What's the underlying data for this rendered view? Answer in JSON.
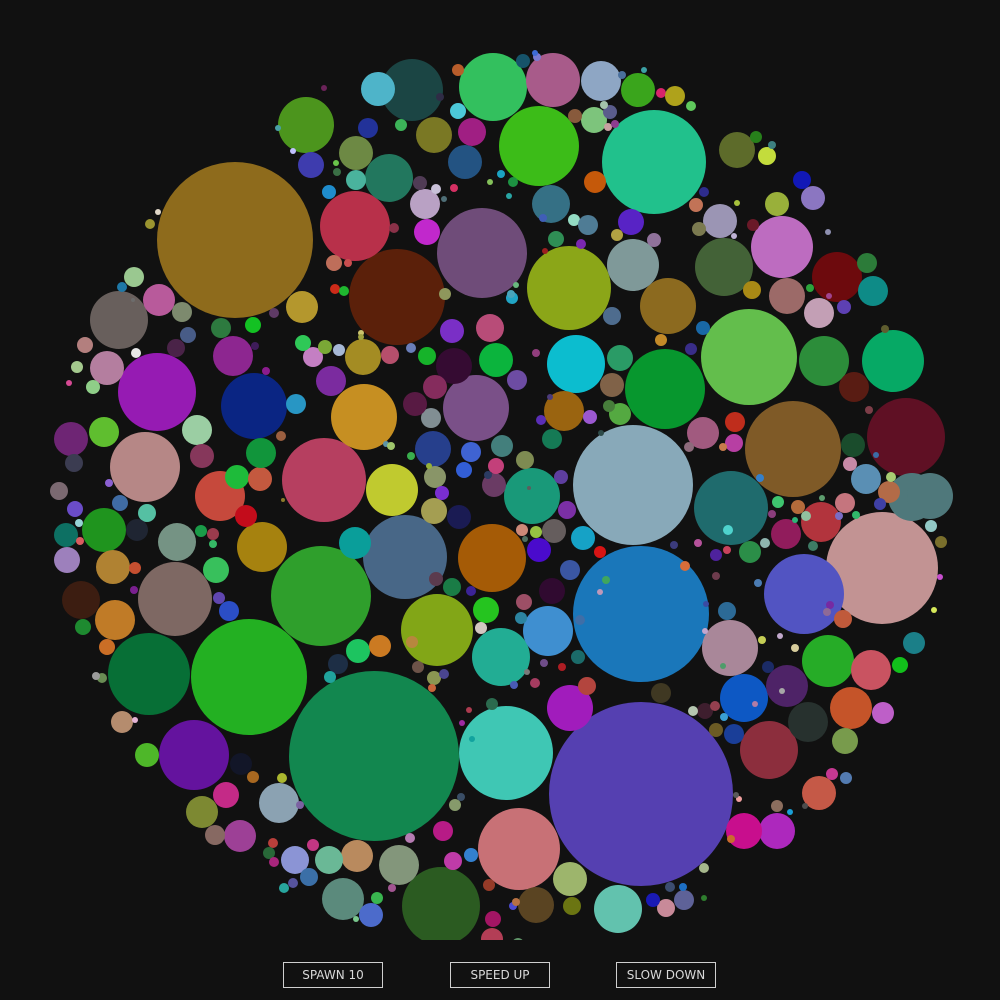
{
  "controls": {
    "spawn_label": "SPAWN 10",
    "speed_up_label": "SPEED UP",
    "slow_down_label": "SLOW DOWN"
  },
  "colors": {
    "background": "#111111",
    "button_border": "#cfcfcf",
    "button_text": "#d8d8d8"
  }
}
